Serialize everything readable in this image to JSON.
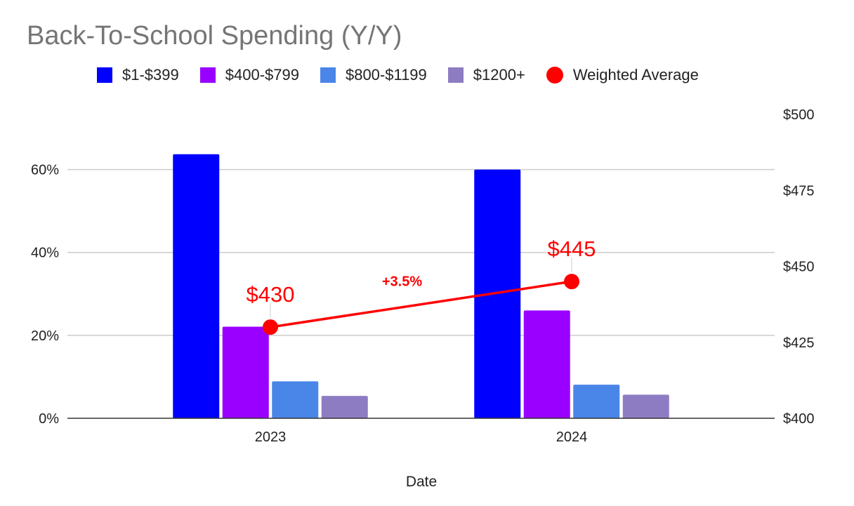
{
  "chart_data": {
    "type": "bar",
    "title": "Back-To-School Spending (Y/Y)",
    "xlabel": "Date",
    "ylabel": "",
    "categories": [
      "2023",
      "2024"
    ],
    "y_left": {
      "ticks": [
        "0%",
        "20%",
        "40%",
        "60%"
      ],
      "tick_values": [
        0,
        20,
        40,
        60
      ],
      "range": [
        0,
        73.3
      ]
    },
    "y_right": {
      "ticks": [
        "$400",
        "$425",
        "$450",
        "$475",
        "$500"
      ],
      "tick_values": [
        400,
        425,
        450,
        475,
        500
      ],
      "range": [
        400,
        500
      ]
    },
    "gridlines": true,
    "legend_position": "top",
    "series": [
      {
        "name": "$1-$399",
        "type": "bar",
        "axis": "left",
        "color": "#0000ff",
        "values": [
          63.7,
          60.0
        ]
      },
      {
        "name": "$400-$799",
        "type": "bar",
        "axis": "left",
        "color": "#9900ff",
        "values": [
          22.1,
          26.0
        ]
      },
      {
        "name": "$800-$1199",
        "type": "bar",
        "axis": "left",
        "color": "#4a86e8",
        "values": [
          8.9,
          8.1
        ]
      },
      {
        "name": "$1200+",
        "type": "bar",
        "axis": "left",
        "color": "#8e7cc3",
        "values": [
          5.4,
          5.7
        ]
      },
      {
        "name": "Weighted Average",
        "type": "line",
        "axis": "right",
        "color": "#ff0000",
        "values": [
          430,
          445
        ],
        "labels": [
          "$430",
          "$445"
        ]
      }
    ],
    "annotations": [
      {
        "text": "+3.5%",
        "color": "#ff0000"
      }
    ]
  }
}
